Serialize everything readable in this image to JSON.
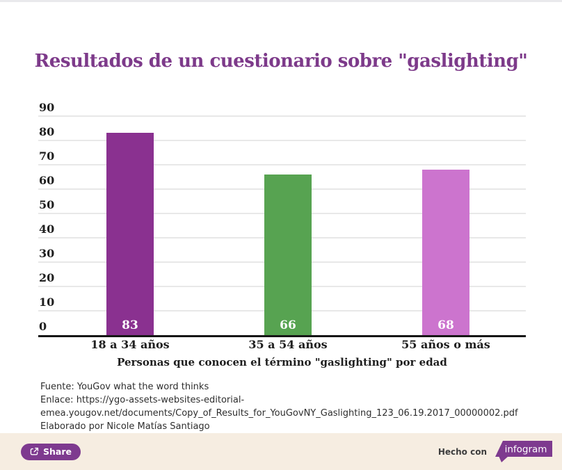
{
  "title": "Resultados de un cuestionario sobre \"gaslighting\"",
  "chart_data": {
    "type": "bar",
    "categories": [
      "18 a 34 años",
      "35 a 54 años",
      "55 años o más"
    ],
    "values": [
      83,
      66,
      68
    ],
    "bar_colors": [
      "#8a3190",
      "#57a351",
      "#cc74ce"
    ],
    "value_label_color": "#ffffff",
    "title": "Resultados de un cuestionario sobre \"gaslighting\"",
    "xlabel": "Personas que conocen el término \"gaslighting\" por edad",
    "ylabel": "",
    "ylim": [
      0,
      90
    ],
    "ytick_step": 10,
    "yticks": [
      0,
      10,
      20,
      30,
      40,
      50,
      60,
      70,
      80,
      90
    ],
    "grid": true,
    "legend": "none"
  },
  "colors": {
    "title": "#7d3a8a",
    "grid": "#e8e8e8",
    "axis": "#161616",
    "footer_bg": "#f6ede1",
    "accent_purple": "#7e3a8f"
  },
  "source": {
    "lines": [
      "Fuente: YouGov what the word thinks",
      "Enlace: https://ygo-assets-websites-editorial-",
      "emea.yougov.net/documents/Copy_of_Results_for_YouGovNY_Gaslighting_123_06.19.2017_00000002.pdf",
      "Elaborado por Nicole Matías Santiago"
    ]
  },
  "footer": {
    "share_label": "Share",
    "made_with_label": "Hecho con",
    "brand": "infogram"
  }
}
